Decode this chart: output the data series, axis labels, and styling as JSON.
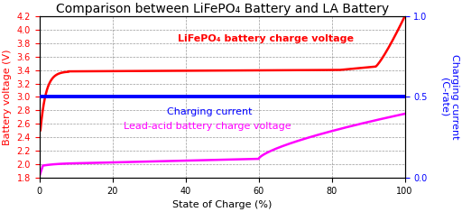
{
  "title": "Comparison between LiFePO₄ Battery and LA Battery",
  "xlabel": "State of Charge (%)",
  "ylabel_left": "Battery voltage (V)",
  "ylabel_right": "Charging current\n(C-rate)",
  "ylim_left": [
    1.8,
    4.2
  ],
  "ylim_right": [
    0.0,
    1.0
  ],
  "xlim": [
    0,
    100
  ],
  "yticks_left": [
    1.8,
    2.0,
    2.2,
    2.4,
    2.6,
    2.8,
    3.0,
    3.2,
    3.4,
    3.6,
    3.8,
    4.0,
    4.2
  ],
  "yticks_right": [
    0.0,
    0.5,
    1.0
  ],
  "xticks": [
    0,
    20,
    40,
    60,
    80,
    100
  ],
  "color_lifepo4": "#ff0000",
  "color_lead_acid": "#ff00ff",
  "color_current": "#0000ff",
  "color_ylabel_left": "#ff0000",
  "color_ylabel_right": "#0000ff",
  "label_lifepo4": "LiFePO₄ battery charge voltage",
  "label_lead_acid": "Lead-acid battery charge voltage",
  "label_current": "Charging current",
  "charging_current_value": 0.5,
  "title_fontsize": 10,
  "label_fontsize": 8,
  "tick_fontsize": 7,
  "annotation_fontsize": 8,
  "background_color": "#ffffff"
}
